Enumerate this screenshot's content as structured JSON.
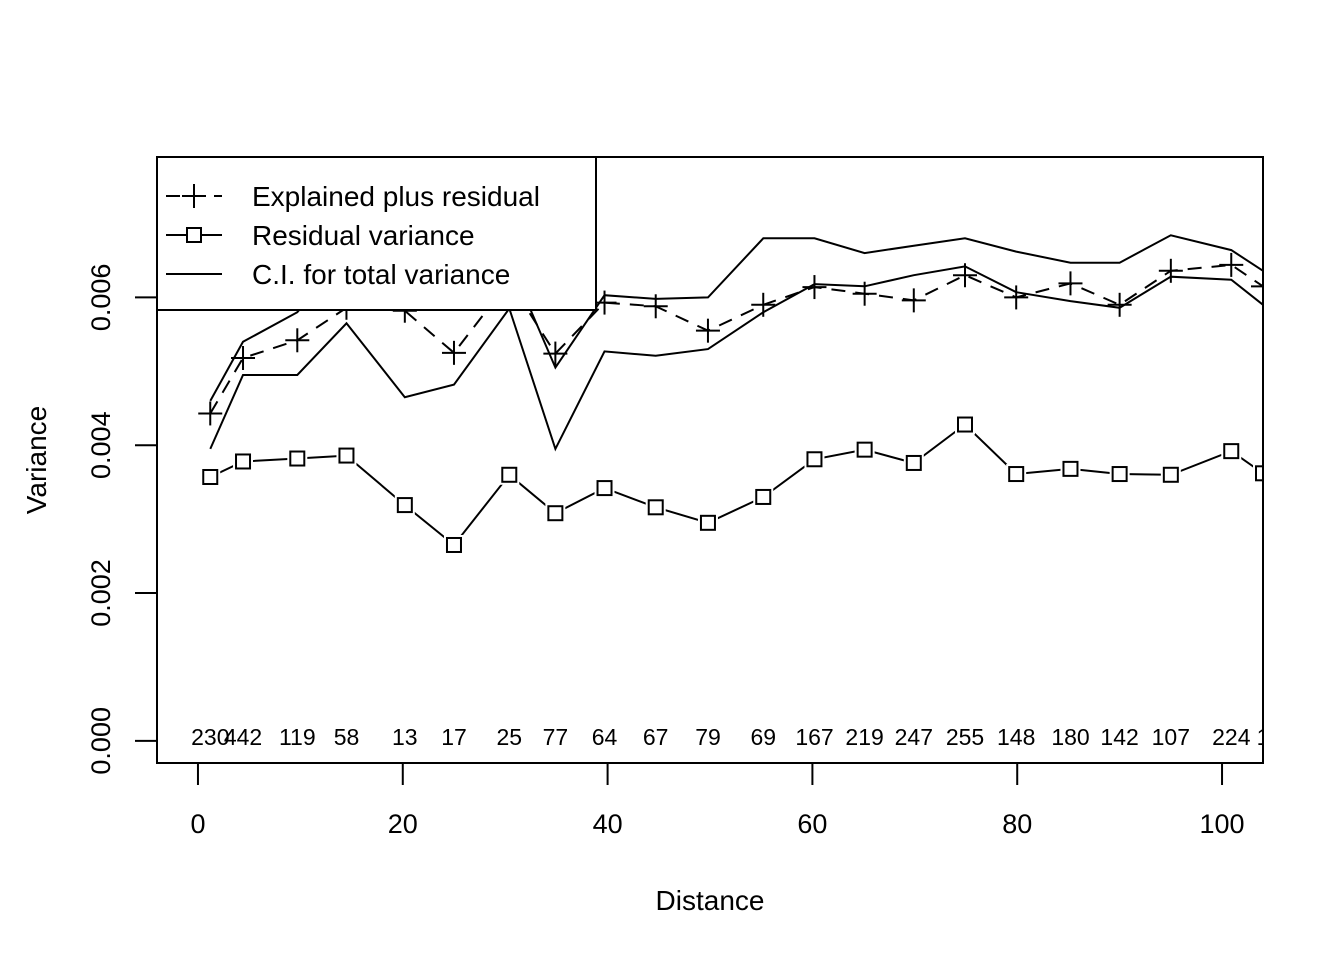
{
  "chart_data": {
    "type": "line",
    "xlabel": "Distance",
    "ylabel": "Variance",
    "xlim": [
      -4,
      104
    ],
    "ylim": [
      -0.0003,
      0.0079
    ],
    "x_ticks": [
      0,
      20,
      40,
      60,
      80,
      100
    ],
    "x_tick_labels": [
      "0",
      "20",
      "40",
      "60",
      "80",
      "100"
    ],
    "y_ticks": [
      0.0,
      0.002,
      0.004,
      0.006
    ],
    "y_tick_labels": [
      "0.000",
      "0.002",
      "0.004",
      "0.006"
    ],
    "grid": false,
    "legend_position": "top-left",
    "x": [
      1.2,
      4.4,
      9.7,
      14.5,
      20.2,
      25.0,
      30.4,
      34.9,
      39.7,
      44.7,
      49.8,
      55.2,
      60.2,
      65.1,
      69.9,
      74.9,
      79.9,
      85.2,
      90.0,
      95.0,
      100.9,
      104.0
    ],
    "counts": [
      "230",
      "442",
      "119",
      "58",
      "13",
      "17",
      "25",
      "77",
      "64",
      "67",
      "79",
      "69",
      "167",
      "219",
      "247",
      "255",
      "148",
      "180",
      "142",
      "107",
      "224",
      "1"
    ],
    "series": [
      {
        "name": "Explained plus residual",
        "line_style": "dashed",
        "marker": "plus",
        "values": [
          0.00443,
          0.00518,
          0.00542,
          0.00586,
          0.00582,
          0.00525,
          0.00622,
          0.00524,
          0.00593,
          0.00588,
          0.00555,
          0.0059,
          0.00614,
          0.00605,
          0.00596,
          0.0063,
          0.006,
          0.00619,
          0.0059,
          0.00636,
          0.00644,
          0.00615
        ]
      },
      {
        "name": "Residual variance",
        "line_style": "solid",
        "marker": "square",
        "values": [
          0.00357,
          0.00378,
          0.00382,
          0.00386,
          0.00319,
          0.00265,
          0.0036,
          0.00308,
          0.00342,
          0.00316,
          0.00295,
          0.0033,
          0.00381,
          0.00394,
          0.00376,
          0.00428,
          0.00361,
          0.00368,
          0.00361,
          0.0036,
          0.00392,
          0.00362
        ]
      },
      {
        "name": "C.I. for total variance",
        "line_style": "solid",
        "marker": "none",
        "bands": [
          [
            0.0046,
            0.0054,
            0.0058,
            0.0066,
            0.0064,
            0.0062,
            0.0065,
            0.00505,
            0.00603,
            0.00598,
            0.006,
            0.0068,
            0.0068,
            0.0066,
            0.0067,
            0.0068,
            0.00662,
            0.00647,
            0.00647,
            0.00684,
            0.00664,
            0.00636
          ],
          [
            0.00395,
            0.00495,
            0.00495,
            0.00565,
            0.00465,
            0.00482,
            0.00585,
            0.00395,
            0.00527,
            0.00521,
            0.0053,
            0.0058,
            0.00618,
            0.00615,
            0.0063,
            0.00642,
            0.00607,
            0.00595,
            0.00586,
            0.00628,
            0.00624,
            0.0059
          ]
        ]
      }
    ]
  }
}
